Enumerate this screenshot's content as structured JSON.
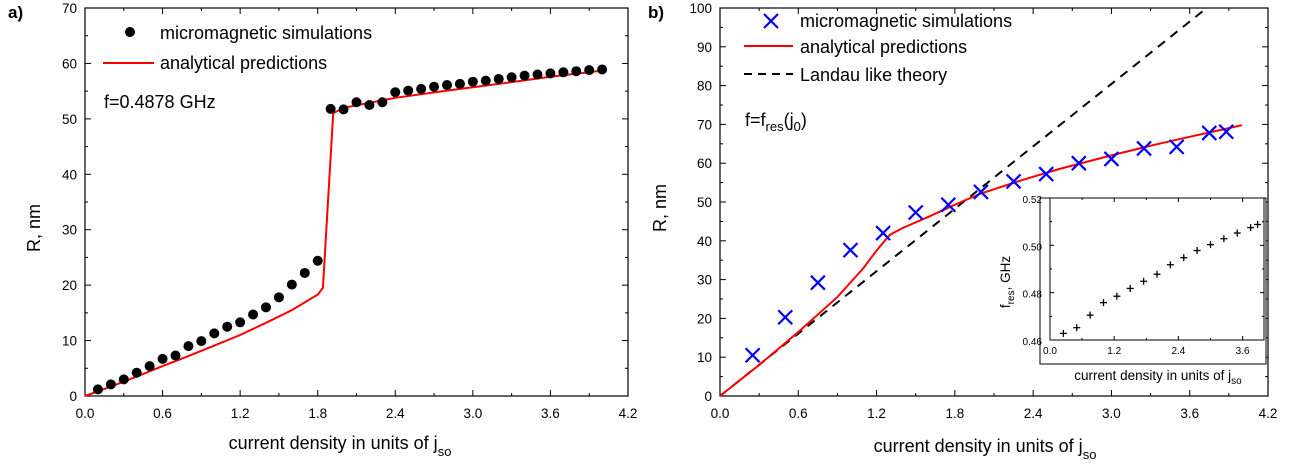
{
  "chart_data": [
    {
      "type": "scatter",
      "panel_label": "a)",
      "xlabel": "current density in units of j",
      "xlabel_sub": "so",
      "ylabel": "R, nm",
      "xlim": [
        0,
        4.2
      ],
      "ylim": [
        0,
        70
      ],
      "xticks": [
        "0.0",
        "0.6",
        "1.2",
        "1.8",
        "2.4",
        "3.0",
        "3.6",
        "4.2"
      ],
      "yticks": [
        "0",
        "10",
        "20",
        "30",
        "40",
        "50",
        "60",
        "70"
      ],
      "annotation": "f=0.4878 GHz",
      "legend_placement": "top-left",
      "series": [
        {
          "name": "micromagnetic simulations",
          "marker": "circle",
          "color": "#000000",
          "x": [
            0.1,
            0.2,
            0.3,
            0.4,
            0.5,
            0.6,
            0.7,
            0.8,
            0.9,
            1.0,
            1.1,
            1.2,
            1.3,
            1.4,
            1.5,
            1.6,
            1.7,
            1.8,
            1.9,
            2.0,
            2.1,
            2.2,
            2.3,
            2.4,
            2.5,
            2.6,
            2.7,
            2.8,
            2.9,
            3.0,
            3.1,
            3.2,
            3.3,
            3.4,
            3.5,
            3.6,
            3.7,
            3.8,
            3.9,
            4.0
          ],
          "y": [
            1.2,
            2.1,
            3.0,
            4.2,
            5.4,
            6.7,
            7.3,
            9.0,
            9.9,
            11.3,
            12.5,
            13.3,
            14.7,
            16.0,
            17.8,
            20.1,
            22.2,
            24.4,
            51.8,
            51.7,
            53.0,
            52.5,
            53.0,
            54.8,
            55.1,
            55.4,
            55.8,
            56.1,
            56.3,
            56.7,
            56.9,
            57.2,
            57.5,
            57.8,
            58.0,
            58.2,
            58.4,
            58.6,
            58.8,
            58.9
          ]
        },
        {
          "name": "analytical predictions",
          "marker": "line",
          "color": "#ff0000",
          "x": [
            0.0,
            0.2,
            0.4,
            0.6,
            0.8,
            1.0,
            1.2,
            1.4,
            1.6,
            1.8,
            1.84,
            1.92,
            2.0,
            2.4,
            2.8,
            3.2,
            3.6,
            4.0
          ],
          "y": [
            0.0,
            1.7,
            3.5,
            5.4,
            7.2,
            9.1,
            11.0,
            13.2,
            15.5,
            18.3,
            19.5,
            51.0,
            52.0,
            53.8,
            55.1,
            56.3,
            57.6,
            58.7
          ]
        }
      ]
    },
    {
      "type": "scatter",
      "panel_label": "b)",
      "xlabel": "current density in units of j",
      "xlabel_sub": "so",
      "ylabel": "R, nm",
      "xlim": [
        0,
        4.2
      ],
      "ylim": [
        0,
        100
      ],
      "xticks": [
        "0.0",
        "0.6",
        "1.2",
        "1.8",
        "2.4",
        "3.0",
        "3.6",
        "4.2"
      ],
      "yticks": [
        "0",
        "10",
        "20",
        "30",
        "40",
        "50",
        "60",
        "70",
        "80",
        "90",
        "100"
      ],
      "annotation": "f=f",
      "annotation_sub1": "res",
      "annotation_mid": "(j",
      "annotation_sub2": "0",
      "annotation_end": ")",
      "legend_placement": "top-right",
      "series": [
        {
          "name": "micromagnetic simulations",
          "marker": "x",
          "color": "#0000ff",
          "x": [
            0.25,
            0.5,
            0.75,
            1.0,
            1.25,
            1.5,
            1.75,
            2.0,
            2.25,
            2.5,
            2.75,
            3.0,
            3.25,
            3.5,
            3.75,
            3.88
          ],
          "y": [
            10.5,
            20.3,
            29.2,
            37.6,
            42.0,
            47.3,
            49.3,
            52.6,
            55.3,
            57.2,
            60.0,
            61.1,
            63.8,
            64.2,
            67.8,
            68.1
          ]
        },
        {
          "name": "analytical predictions",
          "marker": "line",
          "color": "#ff0000",
          "x": [
            0.0,
            0.3,
            0.6,
            0.9,
            1.1,
            1.2,
            1.3,
            1.4,
            1.6,
            1.8,
            2.0,
            2.3,
            2.6,
            3.0,
            3.3,
            3.6,
            3.8,
            4.0
          ],
          "y": [
            0.0,
            8.0,
            16.5,
            25.5,
            33.0,
            37.5,
            41.5,
            43.3,
            46.2,
            49.3,
            52.2,
            55.5,
            58.5,
            62.0,
            64.5,
            66.8,
            68.3,
            69.8
          ]
        },
        {
          "name": "Landau like theory",
          "marker": "dashed",
          "color": "#000000",
          "x": [
            0.0,
            3.73
          ],
          "y": [
            0.0,
            100.0
          ]
        }
      ],
      "inset": {
        "xlabel": "current density in units of j",
        "xlabel_sub": "so",
        "ylabel": "f",
        "ylabel_sub": "res",
        "ylabel_end": ", GHz",
        "xlim": [
          0,
          4.0
        ],
        "ylim": [
          0.46,
          0.52
        ],
        "xticks": [
          "0.0",
          "1.2",
          "2.4",
          "3.6"
        ],
        "yticks": [
          "0.46",
          "0.48",
          "0.50",
          "0.52"
        ],
        "series": [
          {
            "marker": "plus",
            "color": "#000000",
            "x": [
              0.25,
              0.5,
              0.75,
              1.0,
              1.25,
              1.5,
              1.75,
              2.0,
              2.25,
              2.5,
              2.75,
              3.0,
              3.25,
              3.5,
              3.75,
              3.88
            ],
            "y": [
              0.4628,
              0.4652,
              0.4705,
              0.4758,
              0.4785,
              0.4818,
              0.4848,
              0.4878,
              0.4918,
              0.4948,
              0.4978,
              0.5003,
              0.5028,
              0.5052,
              0.5075,
              0.5088
            ]
          }
        ]
      }
    }
  ]
}
